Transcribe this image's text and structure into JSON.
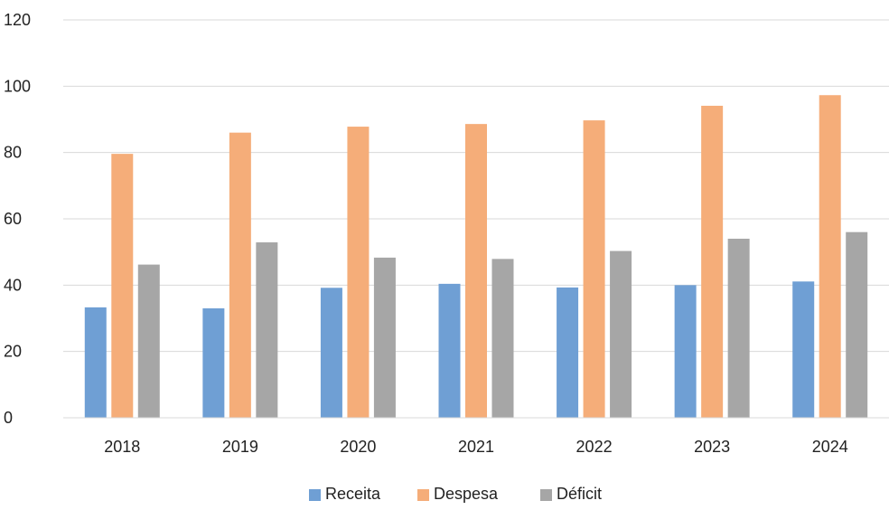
{
  "chart_data": {
    "type": "bar",
    "title": "",
    "xlabel": "",
    "ylabel": "",
    "categories": [
      "2018",
      "2019",
      "2020",
      "2021",
      "2022",
      "2023",
      "2024"
    ],
    "series": [
      {
        "name": "Receita",
        "color": "#6f9fd4",
        "values": [
          33.3,
          33.0,
          39.2,
          40.4,
          39.3,
          40.0,
          41.1
        ]
      },
      {
        "name": "Despesa",
        "color": "#f5ad79",
        "values": [
          79.6,
          86.0,
          87.8,
          88.6,
          89.7,
          94.1,
          97.3
        ]
      },
      {
        "name": "Déficit",
        "color": "#a6a6a6",
        "values": [
          46.2,
          52.9,
          48.3,
          47.9,
          50.3,
          54.0,
          56.0
        ]
      }
    ],
    "ylim": [
      0,
      120
    ],
    "yticks": [
      0,
      20,
      40,
      60,
      80,
      100,
      120
    ],
    "grid": true,
    "legend_position": "bottom"
  }
}
